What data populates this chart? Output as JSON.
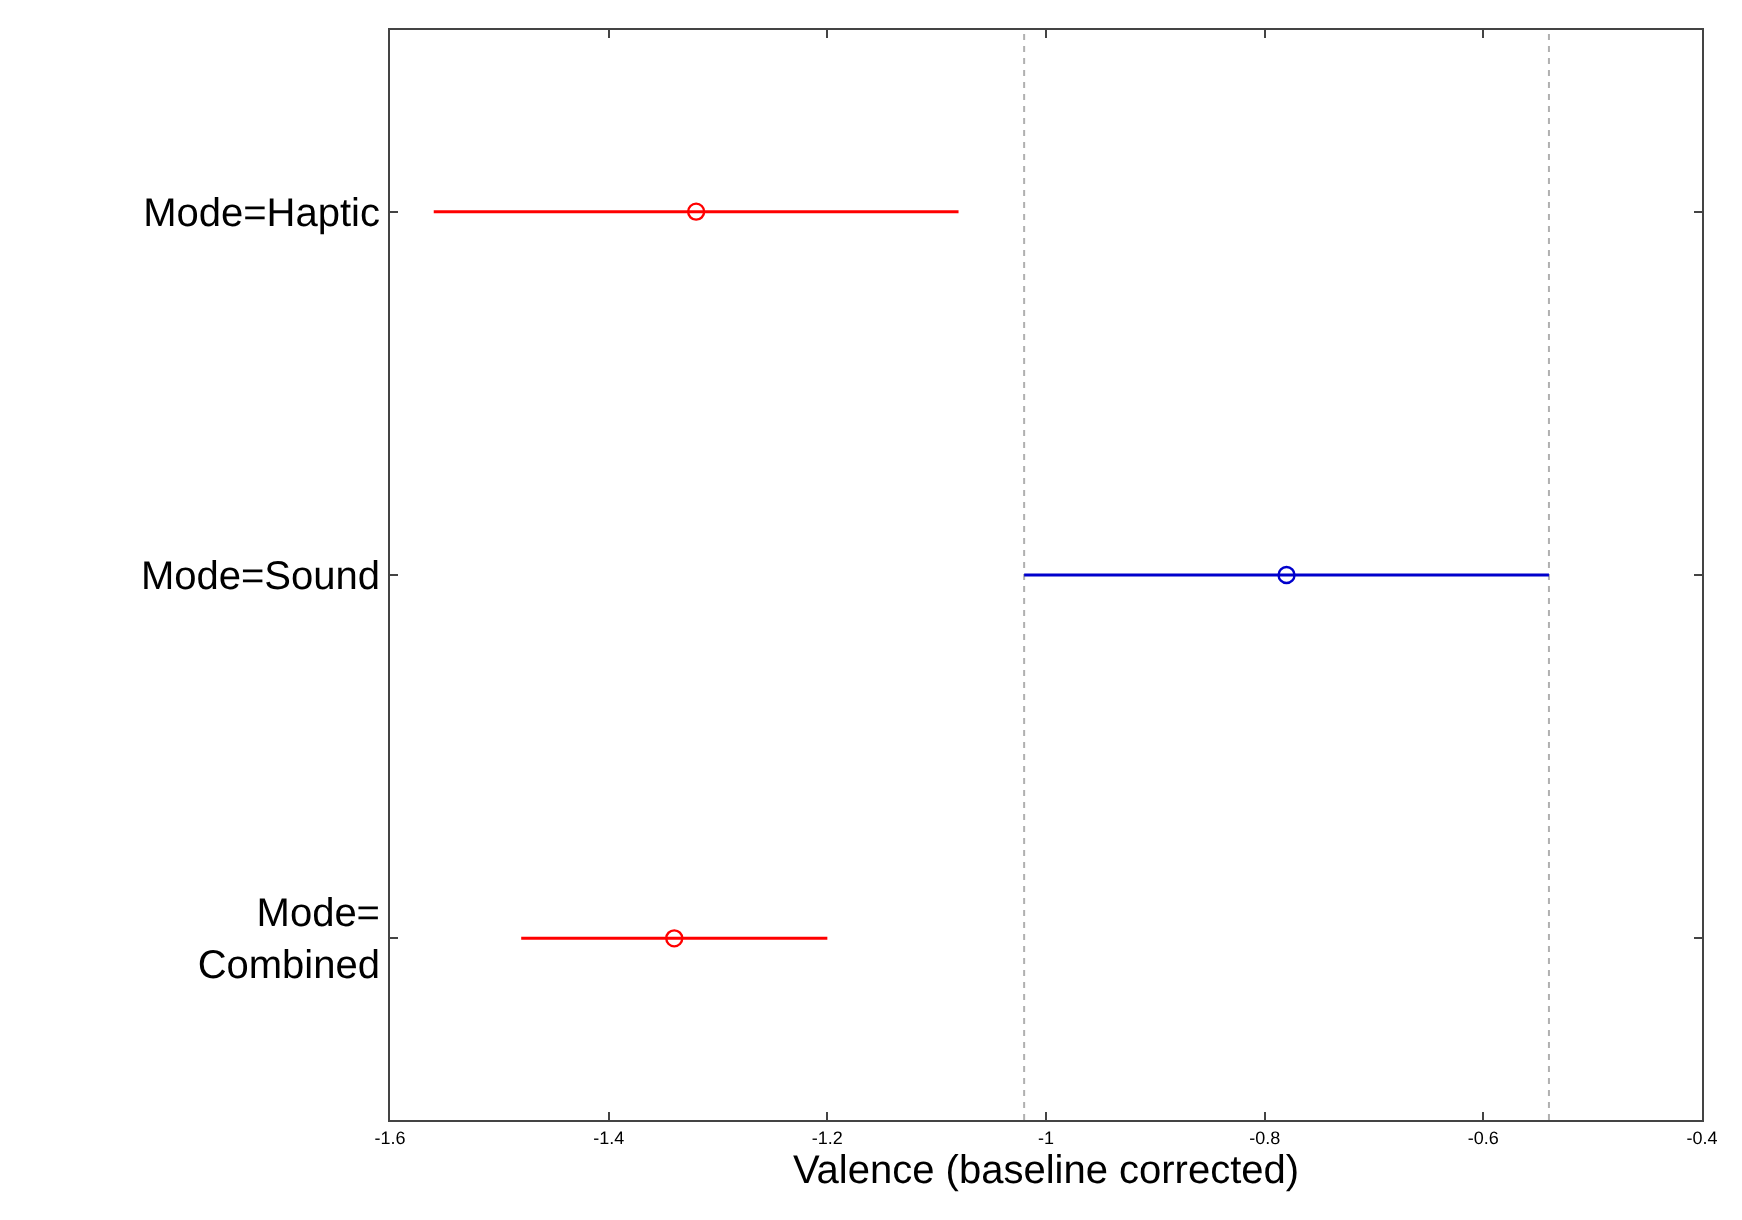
{
  "chart_data": {
    "type": "scatter",
    "orientation": "horizontal",
    "xlabel": "Valence (baseline corrected)",
    "categories": [
      "Mode=Haptic",
      "Mode=Sound",
      "Mode=\nCombined"
    ],
    "values": [
      -1.32,
      -0.78,
      -1.34
    ],
    "errors": [
      [
        -1.56,
        -1.08
      ],
      [
        -1.02,
        -0.54
      ],
      [
        -1.48,
        -1.2
      ]
    ],
    "colors": [
      "#ff0000",
      "#0000cc",
      "#ff0000"
    ],
    "marker": "circle",
    "grid": false,
    "xlim": [
      -1.6,
      -0.4
    ],
    "xticks": [
      -1.6,
      -1.4,
      -1.2,
      -1,
      -0.8,
      -0.6,
      -0.4
    ],
    "ref_lines": [
      {
        "axis": "x",
        "value": -1.02,
        "color": "#b0b0b0",
        "line_style": "dotted"
      },
      {
        "axis": "x",
        "value": -0.54,
        "color": "#b0b0b0",
        "line_style": "dotted"
      }
    ]
  }
}
